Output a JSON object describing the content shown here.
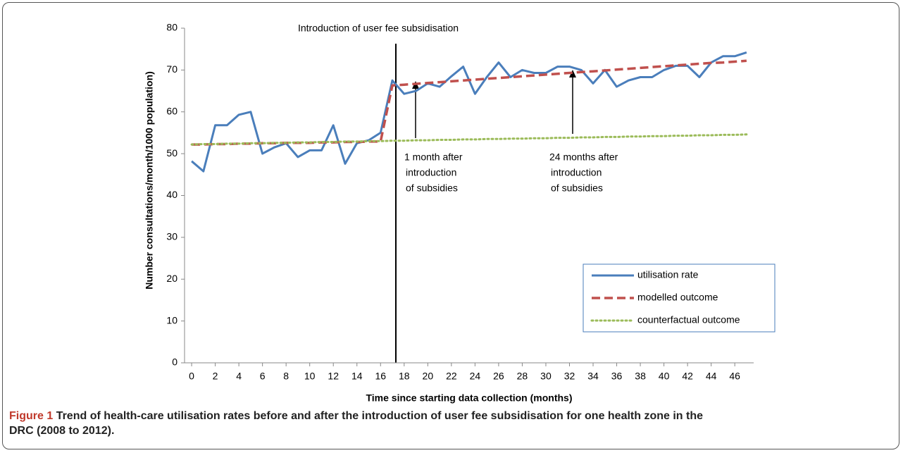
{
  "chart_data": {
    "type": "line",
    "y_label": "Number consultations/month/1000  population)",
    "x_label": "Time since starting data collection (months)",
    "x": [
      0,
      1,
      2,
      3,
      4,
      5,
      6,
      7,
      8,
      9,
      10,
      11,
      12,
      13,
      14,
      15,
      16,
      17,
      18,
      19,
      20,
      21,
      22,
      23,
      24,
      25,
      26,
      27,
      28,
      29,
      30,
      31,
      32,
      33,
      34,
      35,
      36,
      37,
      38,
      39,
      40,
      41,
      42,
      43,
      44,
      45,
      46,
      47
    ],
    "series": [
      {
        "name": "utilisation rate",
        "color": "#4a7ebb",
        "style": "solid",
        "values": [
          48.2,
          45.8,
          56.8,
          56.8,
          59.3,
          60,
          50,
          51.5,
          52.5,
          49.2,
          50.8,
          50.8,
          56.8,
          47.6,
          52.5,
          53.2,
          55,
          67.5,
          64.3,
          65,
          66.8,
          66,
          68.5,
          70.8,
          64.3,
          68.3,
          71.8,
          68.3,
          70,
          69.3,
          69.3,
          70.8,
          70.8,
          70,
          66.8,
          70,
          66,
          67.5,
          68.3,
          68.3,
          70,
          71,
          71,
          68.3,
          71.8,
          73.3,
          73.3,
          74.2
        ]
      },
      {
        "name": "modelled outcome",
        "color": "#c0504d",
        "style": "dashed",
        "values": [
          52.2,
          52.2,
          52.3,
          52.3,
          52.4,
          52.4,
          52.5,
          52.5,
          52.6,
          52.6,
          52.6,
          52.7,
          52.7,
          52.8,
          52.8,
          52.9,
          52.9,
          66.3,
          66.5,
          66.7,
          66.9,
          67.1,
          67.3,
          67.5,
          67.7,
          67.9,
          68.1,
          68.3,
          68.5,
          68.7,
          68.9,
          69.1,
          69.3,
          69.5,
          69.7,
          69.9,
          70.1,
          70.3,
          70.5,
          70.7,
          70.9,
          71.1,
          71.3,
          71.5,
          71.7,
          71.8,
          72.0,
          72.2
        ]
      },
      {
        "name": "counterfactual outcome",
        "color": "#9bbb59",
        "style": "dotted",
        "values": [
          52.2,
          52.3,
          52.3,
          52.4,
          52.4,
          52.5,
          52.5,
          52.6,
          52.6,
          52.7,
          52.7,
          52.8,
          52.8,
          52.9,
          52.9,
          53.0,
          53.0,
          53.1,
          53.1,
          53.2,
          53.2,
          53.3,
          53.3,
          53.4,
          53.4,
          53.5,
          53.5,
          53.6,
          53.6,
          53.7,
          53.7,
          53.8,
          53.8,
          53.9,
          53.9,
          54.0,
          54.0,
          54.1,
          54.1,
          54.2,
          54.2,
          54.3,
          54.3,
          54.4,
          54.4,
          54.5,
          54.5,
          54.6
        ]
      }
    ],
    "xlim": [
      -0.6,
      47.6
    ],
    "xticks": [
      0,
      2,
      4,
      6,
      8,
      10,
      12,
      14,
      16,
      18,
      20,
      22,
      24,
      26,
      28,
      30,
      32,
      34,
      36,
      38,
      40,
      42,
      44,
      46
    ],
    "ylim": [
      0,
      80
    ],
    "yticks": [
      0,
      10,
      20,
      30,
      40,
      50,
      60,
      70,
      80
    ],
    "annotations": {
      "intervention": "Introduction of user fee subsidisation",
      "one_month": [
        "1 month after",
        "introduction",
        "of subsidies"
      ],
      "twentyfour_months": [
        "24 months after",
        "introduction",
        "of subsidies"
      ]
    }
  },
  "caption": {
    "label": "Figure 1",
    "text": "Trend of health-care utilisation rates before and after the introduction of user fee subsidisation for one health zone in the DRC (2008 to 2012)."
  }
}
